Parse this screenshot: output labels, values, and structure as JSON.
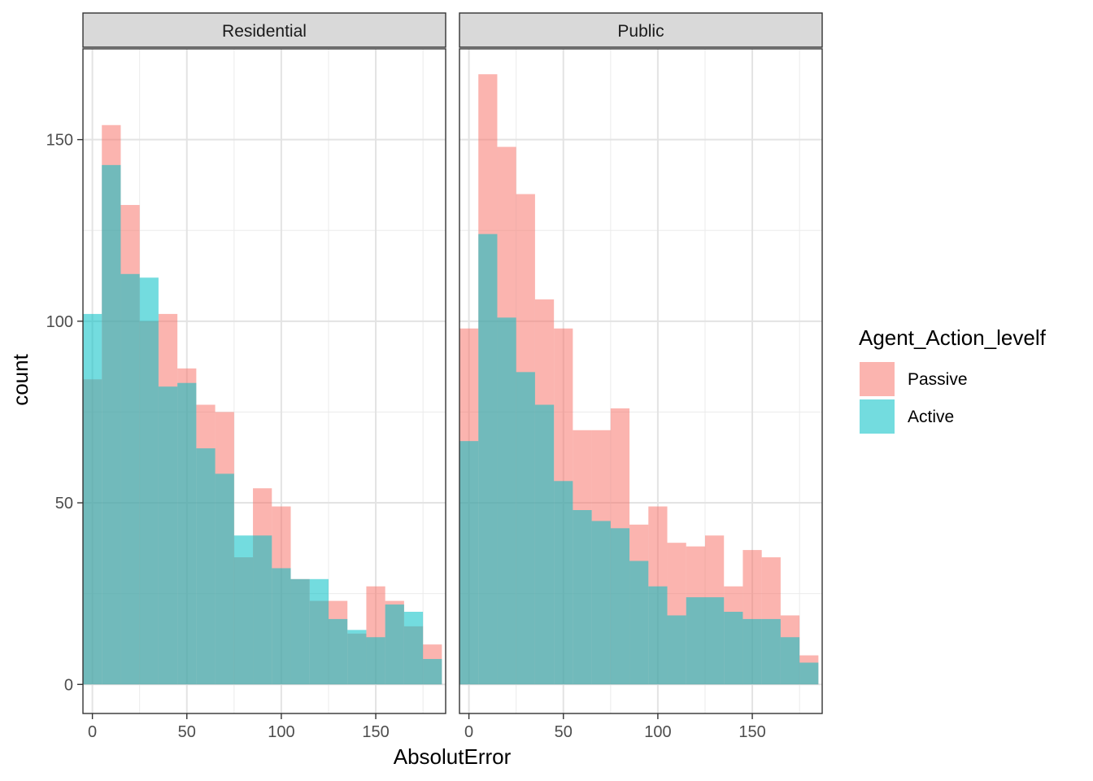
{
  "chart_data": {
    "type": "bar",
    "subtype": "overlaid histogram, faceted",
    "xlabel": "AbsolutError",
    "ylabel": "count",
    "xlim": [
      -5,
      187
    ],
    "ylim": [
      -8,
      175
    ],
    "x_ticks": [
      0,
      50,
      100,
      150
    ],
    "y_ticks": [
      0,
      50,
      100,
      150
    ],
    "grid": true,
    "bin_width": 10,
    "bin_centers": [
      0,
      10,
      20,
      30,
      40,
      50,
      60,
      70,
      80,
      90,
      100,
      110,
      120,
      130,
      140,
      150,
      160,
      170,
      180
    ],
    "legend": {
      "title": "Agent_Action_levelf",
      "position": "right",
      "entries": [
        {
          "label": "Passive",
          "color": "#F8766D"
        },
        {
          "label": "Active",
          "color": "#00BFC4"
        }
      ]
    },
    "facets": [
      {
        "label": "Residential",
        "series": [
          {
            "name": "Passive",
            "color": "#F8766D",
            "values": [
              84,
              154,
              132,
              100,
              102,
              87,
              77,
              75,
              35,
              54,
              49,
              29,
              23,
              23,
              14,
              27,
              23,
              16,
              11
            ]
          },
          {
            "name": "Active",
            "color": "#00BFC4",
            "values": [
              102,
              143,
              113,
              112,
              82,
              83,
              65,
              58,
              41,
              41,
              32,
              29,
              29,
              18,
              15,
              13,
              22,
              20,
              7
            ]
          }
        ]
      },
      {
        "label": "Public",
        "series": [
          {
            "name": "Passive",
            "color": "#F8766D",
            "values": [
              98,
              168,
              148,
              135,
              106,
              98,
              70,
              70,
              76,
              44,
              49,
              39,
              38,
              41,
              27,
              37,
              35,
              19,
              8
            ]
          },
          {
            "name": "Active",
            "color": "#00BFC4",
            "values": [
              67,
              124,
              101,
              86,
              77,
              56,
              48,
              45,
              43,
              34,
              27,
              19,
              24,
              24,
              20,
              18,
              18,
              13,
              6
            ]
          }
        ]
      }
    ]
  }
}
